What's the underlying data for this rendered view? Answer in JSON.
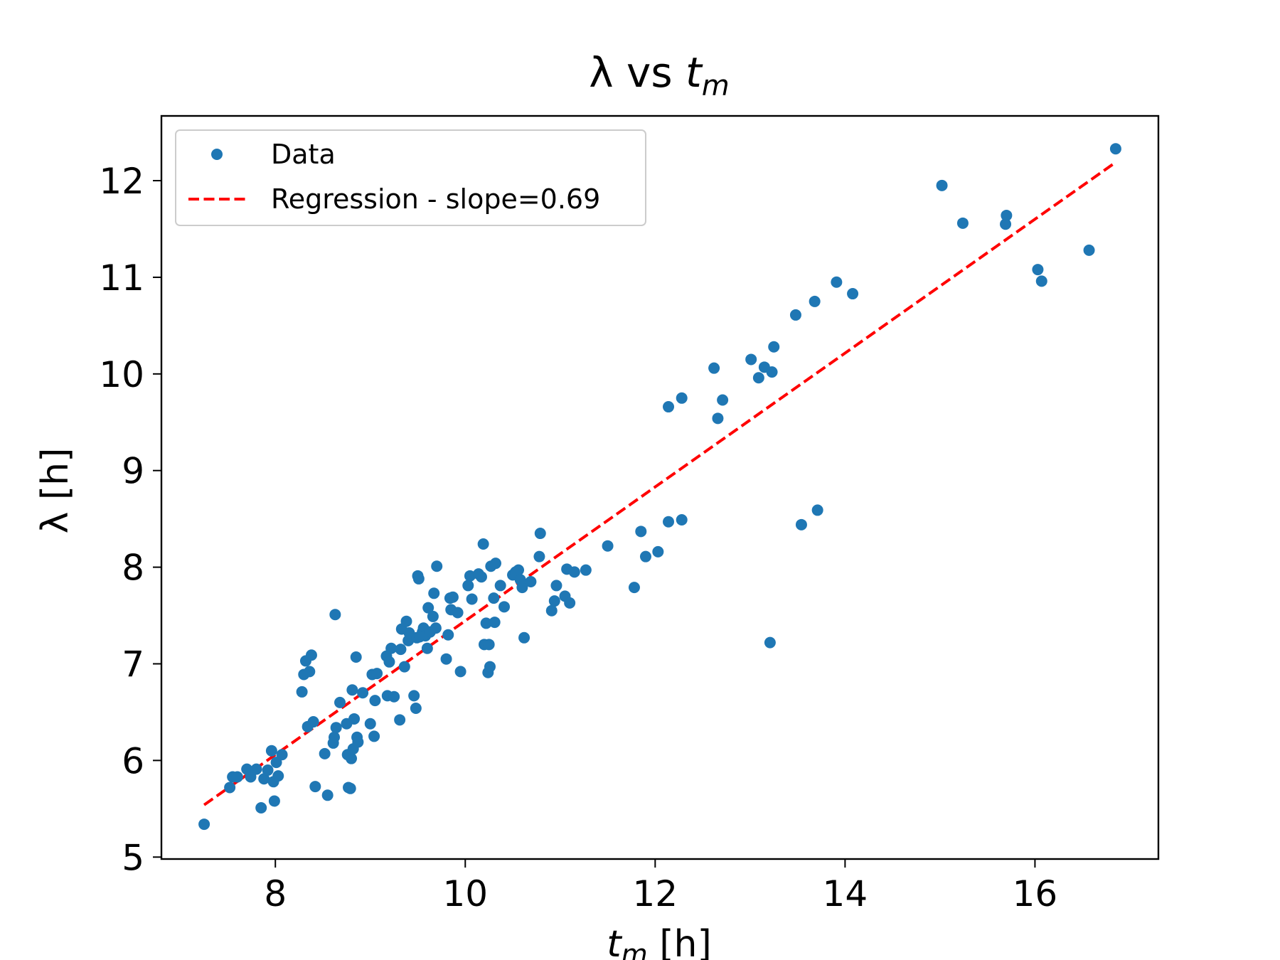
{
  "chart_data": {
    "type": "scatter",
    "title": {
      "main": "λ vs ",
      "var": "t",
      "sub": "m"
    },
    "xlabel": {
      "var": "t",
      "sub": "m",
      "unit": " [h]"
    },
    "ylabel": "λ [h]",
    "xlim": [
      6.8,
      17.3
    ],
    "ylim": [
      4.98,
      12.67
    ],
    "xticks": [
      8,
      10,
      12,
      14,
      16
    ],
    "yticks": [
      5,
      6,
      7,
      8,
      9,
      10,
      11,
      12
    ],
    "grid": false,
    "legend": {
      "position": "top-left",
      "entries": [
        {
          "label": "Data",
          "kind": "marker"
        },
        {
          "label": "Regression - slope=0.69",
          "kind": "dashed-line"
        }
      ]
    },
    "colors": {
      "data": "#1f77b4",
      "regression": "#ff0000"
    },
    "regression": {
      "label": "Regression - slope=0.69",
      "slope": 0.69,
      "x": [
        7.25,
        16.85
      ],
      "y": [
        5.54,
        12.19
      ]
    },
    "series": [
      {
        "name": "Data",
        "points": [
          [
            7.25,
            5.34
          ],
          [
            7.52,
            5.72
          ],
          [
            7.55,
            5.83
          ],
          [
            7.6,
            5.83
          ],
          [
            7.7,
            5.91
          ],
          [
            7.74,
            5.83
          ],
          [
            7.8,
            5.91
          ],
          [
            7.85,
            5.51
          ],
          [
            7.88,
            5.81
          ],
          [
            7.92,
            5.9
          ],
          [
            7.96,
            6.1
          ],
          [
            7.98,
            5.78
          ],
          [
            7.99,
            5.58
          ],
          [
            8.01,
            5.98
          ],
          [
            8.03,
            5.84
          ],
          [
            8.07,
            6.06
          ],
          [
            8.28,
            6.71
          ],
          [
            8.3,
            6.89
          ],
          [
            8.32,
            7.03
          ],
          [
            8.34,
            6.35
          ],
          [
            8.36,
            6.92
          ],
          [
            8.38,
            7.09
          ],
          [
            8.4,
            6.4
          ],
          [
            8.42,
            5.73
          ],
          [
            8.52,
            6.07
          ],
          [
            8.55,
            5.64
          ],
          [
            8.61,
            6.18
          ],
          [
            8.62,
            6.24
          ],
          [
            8.63,
            7.51
          ],
          [
            8.64,
            6.34
          ],
          [
            8.68,
            6.6
          ],
          [
            8.75,
            6.38
          ],
          [
            8.76,
            6.06
          ],
          [
            8.77,
            5.72
          ],
          [
            8.79,
            5.71
          ],
          [
            8.8,
            6.02
          ],
          [
            8.81,
            6.73
          ],
          [
            8.82,
            6.12
          ],
          [
            8.83,
            6.43
          ],
          [
            8.85,
            7.07
          ],
          [
            8.86,
            6.24
          ],
          [
            8.87,
            6.19
          ],
          [
            8.92,
            6.7
          ],
          [
            9.0,
            6.38
          ],
          [
            9.02,
            6.89
          ],
          [
            9.04,
            6.25
          ],
          [
            9.05,
            6.62
          ],
          [
            9.07,
            6.9
          ],
          [
            9.17,
            7.08
          ],
          [
            9.18,
            6.67
          ],
          [
            9.2,
            7.02
          ],
          [
            9.22,
            7.16
          ],
          [
            9.25,
            6.66
          ],
          [
            9.31,
            6.42
          ],
          [
            9.32,
            7.15
          ],
          [
            9.33,
            7.36
          ],
          [
            9.36,
            6.97
          ],
          [
            9.38,
            7.44
          ],
          [
            9.4,
            7.24
          ],
          [
            9.41,
            7.32
          ],
          [
            9.46,
            6.67
          ],
          [
            9.48,
            6.54
          ],
          [
            9.49,
            7.27
          ],
          [
            9.5,
            7.91
          ],
          [
            9.51,
            7.88
          ],
          [
            9.52,
            7.28
          ],
          [
            9.55,
            7.33
          ],
          [
            9.56,
            7.37
          ],
          [
            9.58,
            7.29
          ],
          [
            9.6,
            7.16
          ],
          [
            9.61,
            7.58
          ],
          [
            9.63,
            7.33
          ],
          [
            9.66,
            7.49
          ],
          [
            9.67,
            7.73
          ],
          [
            9.69,
            7.37
          ],
          [
            9.7,
            8.01
          ],
          [
            9.8,
            7.05
          ],
          [
            9.82,
            7.3
          ],
          [
            9.84,
            7.68
          ],
          [
            9.85,
            7.56
          ],
          [
            9.87,
            7.69
          ],
          [
            9.92,
            7.53
          ],
          [
            9.95,
            6.92
          ],
          [
            10.03,
            7.81
          ],
          [
            10.05,
            7.91
          ],
          [
            10.07,
            7.67
          ],
          [
            10.14,
            7.93
          ],
          [
            10.17,
            7.9
          ],
          [
            10.19,
            8.24
          ],
          [
            10.2,
            7.2
          ],
          [
            10.22,
            7.42
          ],
          [
            10.24,
            6.91
          ],
          [
            10.25,
            7.2
          ],
          [
            10.26,
            6.97
          ],
          [
            10.27,
            8.01
          ],
          [
            10.3,
            7.68
          ],
          [
            10.31,
            7.43
          ],
          [
            10.32,
            8.04
          ],
          [
            10.37,
            7.81
          ],
          [
            10.41,
            7.59
          ],
          [
            10.5,
            7.92
          ],
          [
            10.53,
            7.95
          ],
          [
            10.56,
            7.97
          ],
          [
            10.58,
            7.87
          ],
          [
            10.6,
            7.79
          ],
          [
            10.62,
            7.27
          ],
          [
            10.69,
            7.85
          ],
          [
            10.78,
            8.11
          ],
          [
            10.79,
            8.35
          ],
          [
            10.91,
            7.55
          ],
          [
            10.94,
            7.65
          ],
          [
            10.96,
            7.81
          ],
          [
            11.05,
            7.7
          ],
          [
            11.07,
            7.98
          ],
          [
            11.1,
            7.63
          ],
          [
            11.15,
            7.95
          ],
          [
            11.27,
            7.97
          ],
          [
            11.5,
            8.22
          ],
          [
            11.78,
            7.79
          ],
          [
            11.85,
            8.37
          ],
          [
            11.9,
            8.11
          ],
          [
            12.03,
            8.16
          ],
          [
            12.14,
            8.47
          ],
          [
            12.14,
            9.66
          ],
          [
            12.28,
            8.49
          ],
          [
            12.28,
            9.75
          ],
          [
            12.62,
            10.06
          ],
          [
            12.66,
            9.54
          ],
          [
            12.71,
            9.73
          ],
          [
            13.01,
            10.15
          ],
          [
            13.09,
            9.96
          ],
          [
            13.15,
            10.07
          ],
          [
            13.21,
            7.22
          ],
          [
            13.23,
            10.02
          ],
          [
            13.25,
            10.28
          ],
          [
            13.48,
            10.61
          ],
          [
            13.54,
            8.44
          ],
          [
            13.68,
            10.75
          ],
          [
            13.71,
            8.59
          ],
          [
            13.91,
            10.95
          ],
          [
            14.08,
            10.83
          ],
          [
            15.02,
            11.95
          ],
          [
            15.24,
            11.56
          ],
          [
            15.69,
            11.55
          ],
          [
            15.7,
            11.64
          ],
          [
            16.03,
            11.08
          ],
          [
            16.07,
            10.96
          ],
          [
            16.57,
            11.28
          ],
          [
            16.85,
            12.33
          ]
        ]
      }
    ]
  }
}
